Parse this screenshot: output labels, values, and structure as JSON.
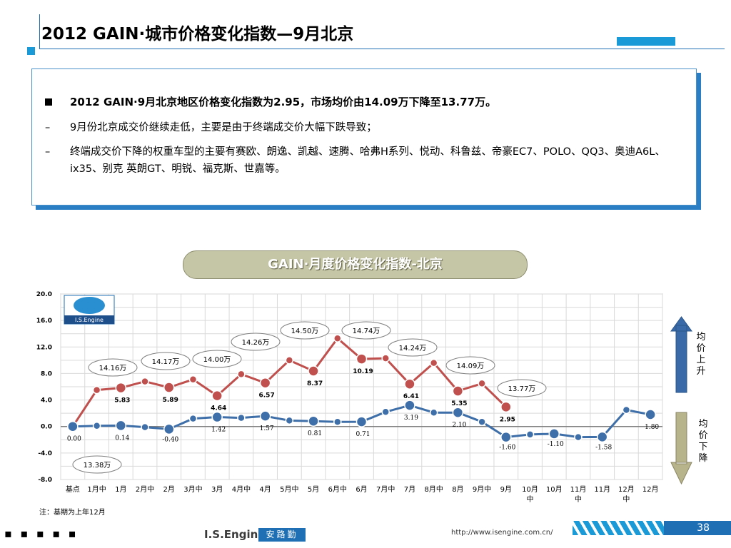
{
  "title": "2012 GAIN·城市价格变化指数—9月北京",
  "bullets": {
    "b1": "2012 GAIN·9月北京地区价格变化指数为2.95，市场均价由14.09万下降至13.77万。",
    "b2_marker": "–",
    "b2": "9月份北京成交价继续走低，主要是由于终端成交价大幅下跌导致；",
    "b3_marker": "–",
    "b3": "终端成交价下降的权重车型的主要有赛欧、朗逸、凯越、速腾、哈弗H系列、悦动、科鲁兹、帝豪EC7、POLO、QQ3、奥迪A6L、ix35、别克 英朗GT、明锐、福克斯、世嘉等。"
  },
  "chart_title": "GAIN·月度价格变化指数-北京",
  "legend_up": "均价上升",
  "legend_down": "均价下降",
  "note": "注：基期为上年12月",
  "footer": {
    "dots": "▪ ▪ ▪ ▪ ▪",
    "brand": "I.S.Engine",
    "brand_cn": "安路勤",
    "url": "http://www.isengine.com.cn/",
    "page": "38"
  },
  "logo_text": "I.S.Engine",
  "colors": {
    "red_series": "#c0504d",
    "blue_series": "#3f6fa8",
    "accent": "#1a9ad6",
    "arrow_up": "#3a6aa8",
    "arrow_down": "#b7b38a"
  },
  "chart_data": {
    "type": "line",
    "categories": [
      "基点",
      "1月中",
      "1月",
      "2月中",
      "2月",
      "3月中",
      "3月",
      "4月中",
      "4月",
      "5月中",
      "5月",
      "6月中",
      "6月",
      "7月中",
      "7月",
      "8月中",
      "8月",
      "9月中",
      "9月",
      "10月中",
      "10月",
      "11月中",
      "11月",
      "12月中",
      "12月"
    ],
    "ylim": [
      -8,
      20
    ],
    "yticks": [
      20.0,
      16.0,
      12.0,
      8.0,
      4.0,
      0.0,
      -4.0,
      -8.0
    ],
    "grid": true,
    "series": [
      {
        "color": "#c0504d",
        "values": [
          0.0,
          5.5,
          5.83,
          6.8,
          5.89,
          7.1,
          4.64,
          7.9,
          6.57,
          10.0,
          8.37,
          13.3,
          10.19,
          10.3,
          6.41,
          9.6,
          5.35,
          6.5,
          2.95,
          null,
          null,
          null,
          null,
          null,
          null
        ]
      },
      {
        "color": "#3f6fa8",
        "values": [
          0.0,
          0.1,
          0.14,
          -0.1,
          -0.4,
          1.2,
          1.42,
          1.3,
          1.57,
          0.9,
          0.81,
          0.7,
          0.71,
          2.2,
          3.19,
          2.1,
          2.1,
          0.7,
          -1.6,
          -1.2,
          -1.1,
          -1.6,
          -1.58,
          2.5,
          1.8
        ]
      }
    ],
    "point_labels": [
      {
        "i": 0,
        "s": 1,
        "text": "0.00"
      },
      {
        "i": 2,
        "s": 0,
        "text": "5.83"
      },
      {
        "i": 2,
        "s": 1,
        "text": "0.14"
      },
      {
        "i": 4,
        "s": 0,
        "text": "5.89"
      },
      {
        "i": 4,
        "s": 1,
        "text": "-0.40"
      },
      {
        "i": 6,
        "s": 0,
        "text": "4.64"
      },
      {
        "i": 6,
        "s": 1,
        "text": "1.42"
      },
      {
        "i": 8,
        "s": 0,
        "text": "6.57"
      },
      {
        "i": 8,
        "s": 1,
        "text": "1.57"
      },
      {
        "i": 10,
        "s": 0,
        "text": "8.37"
      },
      {
        "i": 10,
        "s": 1,
        "text": "0.81"
      },
      {
        "i": 12,
        "s": 0,
        "text": "10.19"
      },
      {
        "i": 12,
        "s": 1,
        "text": "0.71"
      },
      {
        "i": 14,
        "s": 0,
        "text": "6.41"
      },
      {
        "i": 14,
        "s": 1,
        "text": "3.19"
      },
      {
        "i": 16,
        "s": 0,
        "text": "5.35"
      },
      {
        "i": 16,
        "s": 1,
        "text": "2.10"
      },
      {
        "i": 18,
        "s": 0,
        "text": "2.95"
      },
      {
        "i": 18,
        "s": 1,
        "text": "-1.60"
      },
      {
        "i": 20,
        "s": 1,
        "text": "-1.10"
      },
      {
        "i": 22,
        "s": 1,
        "text": "-1.58"
      },
      {
        "i": 24,
        "s": 1,
        "text": "1.80"
      }
    ],
    "price_callouts": [
      {
        "text": "13.38万",
        "i": 0
      },
      {
        "text": "14.16万",
        "i": 2
      },
      {
        "text": "14.17万",
        "i": 4
      },
      {
        "text": "14.00万",
        "i": 6
      },
      {
        "text": "14.26万",
        "i": 8
      },
      {
        "text": "14.50万",
        "i": 10
      },
      {
        "text": "14.74万",
        "i": 12
      },
      {
        "text": "14.24万",
        "i": 14
      },
      {
        "text": "14.09万",
        "i": 16
      },
      {
        "text": "13.77万",
        "i": 18
      }
    ]
  }
}
